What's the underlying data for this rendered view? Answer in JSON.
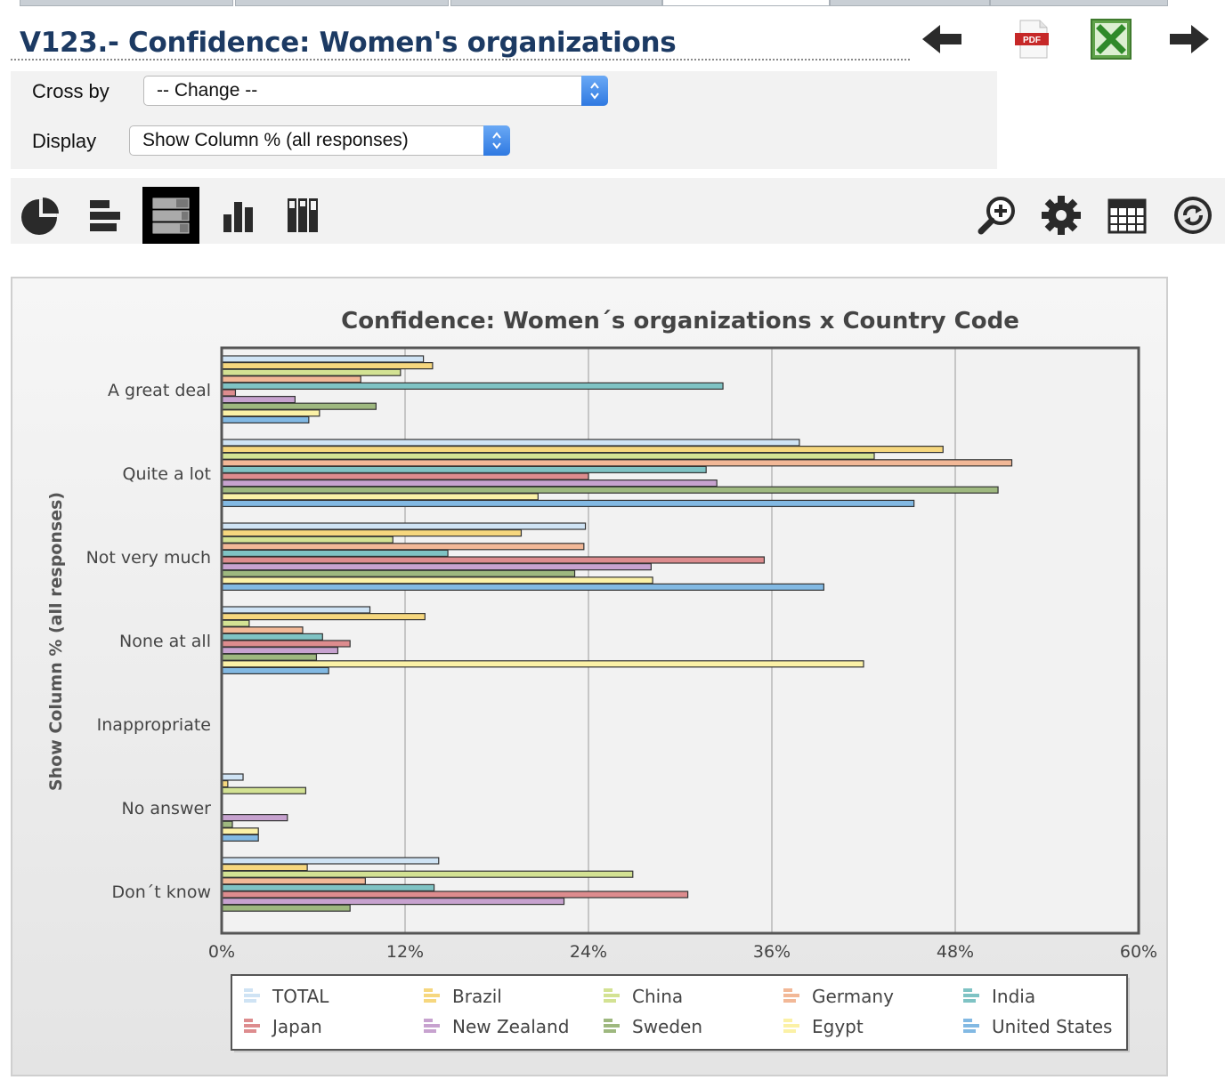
{
  "page": {
    "title": "V123.- Confidence: Women's organizations"
  },
  "controls": {
    "cross_by_label": "Cross by",
    "cross_by_value": "-- Change --",
    "display_label": "Display",
    "display_value": "Show Column % (all responses)"
  },
  "icons": {
    "header": [
      "back-arrow-icon",
      "pdf-export-icon",
      "excel-export-icon",
      "forward-arrow-icon"
    ],
    "toolbar_left": [
      "pie-chart-icon",
      "horizontal-bar-icon",
      "stacked-horizontal-bar-icon",
      "vertical-bar-icon",
      "stacked-vertical-bar-icon"
    ],
    "toolbar_right": [
      "zoom-in-icon",
      "settings-gear-icon",
      "table-view-icon",
      "refresh-icon"
    ],
    "active_chart_view": "stacked-horizontal-bar-icon",
    "pdf_badge": "PDF"
  },
  "chart_data": {
    "type": "bar",
    "orientation": "horizontal",
    "title": "Confidence: Women´s organizations x Country Code",
    "ylabel": "Show Column % (all responses)",
    "xlabel": "",
    "xlim": [
      0,
      60
    ],
    "x_ticks": [
      "0%",
      "12%",
      "24%",
      "36%",
      "48%",
      "60%"
    ],
    "grid": true,
    "legend_position": "bottom",
    "categories": [
      "A great deal",
      "Quite a lot",
      "Not very much",
      "None at all",
      "Inappropriate",
      "No answer",
      "Don´t know"
    ],
    "series": [
      {
        "name": "TOTAL",
        "color": "#cfe3f4",
        "values": [
          13.2,
          37.8,
          23.8,
          9.7,
          0,
          1.4,
          14.2
        ]
      },
      {
        "name": "Brazil",
        "color": "#f6d77e",
        "values": [
          13.8,
          47.2,
          19.6,
          13.3,
          0,
          0.4,
          5.6
        ]
      },
      {
        "name": "China",
        "color": "#d3e293",
        "values": [
          11.7,
          42.7,
          11.2,
          1.8,
          0,
          5.5,
          26.9
        ]
      },
      {
        "name": "Germany",
        "color": "#f2b897",
        "values": [
          9.1,
          51.7,
          23.7,
          5.3,
          0,
          0,
          9.4
        ]
      },
      {
        "name": "India",
        "color": "#7fc3c4",
        "values": [
          32.8,
          31.7,
          14.8,
          6.6,
          0,
          0,
          13.9
        ]
      },
      {
        "name": "Japan",
        "color": "#dd8c8e",
        "values": [
          0.9,
          24.0,
          35.5,
          8.4,
          0,
          0,
          30.5
        ]
      },
      {
        "name": "New Zealand",
        "color": "#c7a2cf",
        "values": [
          4.8,
          32.4,
          28.1,
          7.6,
          0,
          4.3,
          22.4
        ]
      },
      {
        "name": "Sweden",
        "color": "#9eb87f",
        "values": [
          10.1,
          50.8,
          23.1,
          6.2,
          0,
          0.7,
          8.4
        ]
      },
      {
        "name": "Egypt",
        "color": "#fbf1a6",
        "values": [
          6.4,
          20.7,
          28.2,
          42.0,
          0,
          2.4,
          0
        ]
      },
      {
        "name": "United States",
        "color": "#82b9e3",
        "values": [
          5.7,
          45.3,
          39.4,
          7.0,
          0,
          2.4,
          0
        ]
      }
    ]
  }
}
